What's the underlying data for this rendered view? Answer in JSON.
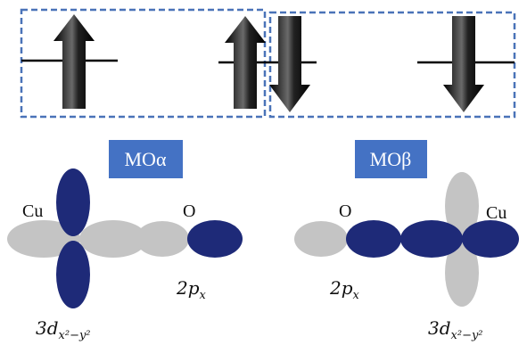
{
  "mo_labels": [
    "MOα",
    "MOβ"
  ],
  "left": {
    "cu": "Cu",
    "o": "O",
    "p_orbital": {
      "main": "2p",
      "sub": "x"
    },
    "d_orbital": {
      "main": "3d",
      "sub": "x²−y²"
    }
  },
  "right": {
    "o": "O",
    "cu": "Cu",
    "p_orbital": {
      "main": "2p",
      "sub": "x"
    },
    "d_orbital": {
      "main": "3d",
      "sub": "x²−y²"
    }
  }
}
